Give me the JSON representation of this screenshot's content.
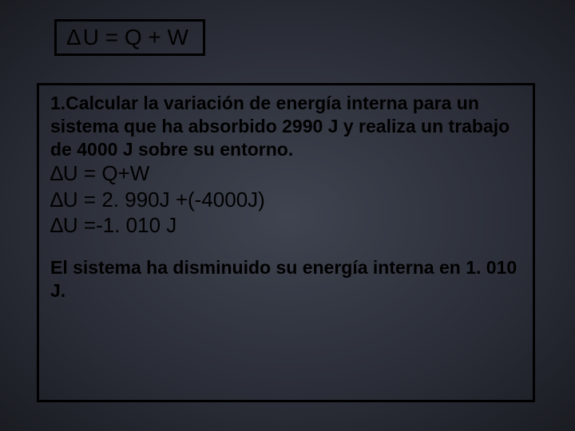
{
  "formula": {
    "delta": "Δ",
    "rest": "U  =  Q + W"
  },
  "problem": {
    "text": " 1.Calcular la variación de energía interna para un sistema que ha absorbido 2990 J y realiza un trabajo de 4000 J sobre su entorno."
  },
  "equations": {
    "line1_pre": "∆",
    "line1": "U = Q+W",
    "line2_pre": "∆",
    "line2": "U = 2. 990J +(-4000J)",
    "line3_pre": "∆",
    "line3": "U =-1. 010 J"
  },
  "conclusion": {
    "text": "El sistema ha disminuido su energía interna en 1. 010 J."
  },
  "colors": {
    "background_center": "#3f4450",
    "background_edge": "#1a1c22",
    "border": "#000000",
    "text": "#000000"
  },
  "fonts": {
    "formula_family": "Comic Sans MS",
    "body_family": "Arial",
    "formula_size_pt": 21,
    "problem_size_pt": 17,
    "eq_size_pt": 19
  }
}
